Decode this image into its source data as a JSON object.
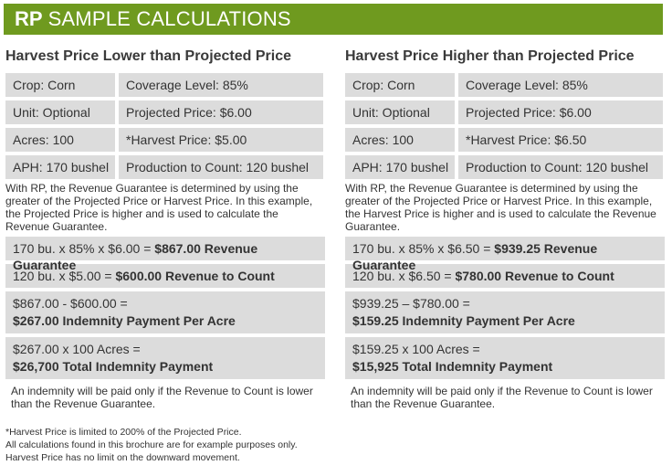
{
  "banner": {
    "prefix": "RP",
    "title": "SAMPLE CALCULATIONS"
  },
  "left": {
    "title": "Harvest Price Lower than Projected Price",
    "cells": [
      "Crop: Corn",
      "Coverage Level: 85%",
      "Unit: Optional",
      "Projected Price: $6.00",
      "Acres: 100",
      "*Harvest Price: $5.00",
      "APH: 170 bushel",
      "Production to Count: 120 bushel"
    ],
    "note": "With RP, the Revenue Guarantee is determined by using the greater of the Projected Price or Harvest Price. In this example, the Projected Price is higher and is used to calculate the Revenue Guarantee.",
    "calc1_plain": "170 bu. x 85% x $6.00 = ",
    "calc1_bold": "$867.00 Revenue Guarantee",
    "calc2_plain": "120 bu. x $5.00 = ",
    "calc2_bold": "$600.00 Revenue to Count",
    "calc3_line1": "$867.00 - $600.00 =",
    "calc3_line2": "$267.00 Indemnity Payment Per Acre",
    "calc4_line1": "$267.00 x 100 Acres =",
    "calc4_line2": "$26,700 Total Indemnity Payment",
    "endnote": "An indemnity will be paid only if the Revenue to Count is lower than the Revenue Guarantee."
  },
  "right": {
    "title": "Harvest Price Higher than Projected Price",
    "cells": [
      "Crop: Corn",
      "Coverage Level: 85%",
      "Unit: Optional",
      "Projected Price: $6.00",
      "Acres: 100",
      "*Harvest Price: $6.50",
      "APH: 170 bushel",
      "Production to Count: 120 bushel"
    ],
    "note": "With RP, the Revenue Guarantee is determined by using the greater of the Projected Price or Harvest Price. In this example, the Harvest Price is higher and is used to calculate the Revenue Guarantee.",
    "calc1_plain": "170 bu. x 85% x $6.50 = ",
    "calc1_bold": "$939.25 Revenue Guarantee",
    "calc2_plain": "120 bu. x $6.50 = ",
    "calc2_bold": "$780.00 Revenue to Count",
    "calc3_line1": "$939.25 – $780.00 =",
    "calc3_line2": "$159.25 Indemnity Payment Per Acre",
    "calc4_line1": "$159.25 x 100 Acres =",
    "calc4_line2": "$15,925 Total Indemnity Payment",
    "endnote": "An indemnity will be paid only if the Revenue to Count is lower than the Revenue Guarantee."
  },
  "footnotes": [
    "*Harvest Price is limited to 200% of the Projected Price.",
    "All calculations found in this brochure are for example purposes only.",
    "Harvest Price has no limit on the downward movement."
  ]
}
